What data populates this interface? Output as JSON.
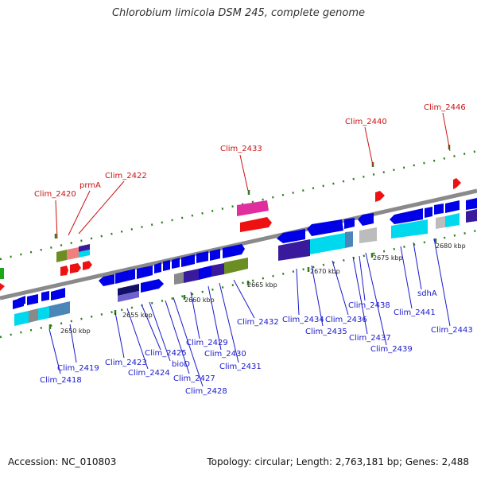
{
  "title": "Chlorobium limicola DSM 245, complete genome",
  "footer": {
    "accession": "Accession: NC_010803",
    "stats": "Topology: circular; Length: 2,763,181 bp; Genes: 2,488"
  },
  "colors": {
    "backbone": "#8a8a8a",
    "tick": "#2e7d1f",
    "gene_label": "#1a1acc",
    "special_label": "#cc1111",
    "cds": "#0000e6",
    "cds_dark": "#3a1a9c",
    "cds_light": "#00d8ee",
    "cds_steel": "#4a86b8",
    "cds_gray": "#8a8a8a",
    "cds_olive": "#6b8e23",
    "cds_pink": "#e02e9e",
    "cds_red": "#ee1111",
    "cds_salmon": "#f08080",
    "cds_silver": "#bcbcbc"
  },
  "scale_labels": [
    {
      "key": "s2650",
      "text": "2650 kbp",
      "position_kbp": 2650
    },
    {
      "key": "s2655",
      "text": "2655 kbp",
      "position_kbp": 2655
    },
    {
      "key": "s2660",
      "text": "2660 kbp",
      "position_kbp": 2660
    },
    {
      "key": "s2665",
      "text": "2665 kbp",
      "position_kbp": 2665
    },
    {
      "key": "s2670",
      "text": "2670 kbp",
      "position_kbp": 2670
    },
    {
      "key": "s2675",
      "text": "2675 kbp",
      "position_kbp": 2675
    },
    {
      "key": "s2680",
      "text": "2680 kbp",
      "position_kbp": 2680
    }
  ],
  "gene_labels_top": [
    {
      "key": "clim2420",
      "text": "Clim_2420"
    },
    {
      "key": "prmA",
      "text": "prmA"
    },
    {
      "key": "clim2422",
      "text": "Clim_2422"
    },
    {
      "key": "clim2433",
      "text": "Clim_2433"
    },
    {
      "key": "clim2440",
      "text": "Clim_2440"
    },
    {
      "key": "clim2446",
      "text": "Clim_2446"
    }
  ],
  "gene_labels_bottom": [
    {
      "key": "clim2418",
      "text": "Clim_2418"
    },
    {
      "key": "clim2419",
      "text": "Clim_2419"
    },
    {
      "key": "clim2423",
      "text": "Clim_2423"
    },
    {
      "key": "clim2424",
      "text": "Clim_2424"
    },
    {
      "key": "clim2425",
      "text": "Clim_2425"
    },
    {
      "key": "bioD",
      "text": "bioD"
    },
    {
      "key": "clim2427",
      "text": "Clim_2427"
    },
    {
      "key": "clim2428",
      "text": "Clim_2428"
    },
    {
      "key": "clim2429",
      "text": "Clim_2429"
    },
    {
      "key": "clim2430",
      "text": "Clim_2430"
    },
    {
      "key": "clim2431",
      "text": "Clim_2431"
    },
    {
      "key": "clim2432",
      "text": "Clim_2432"
    },
    {
      "key": "clim2434",
      "text": "Clim_2434"
    },
    {
      "key": "clim2435",
      "text": "Clim_2435"
    },
    {
      "key": "clim2436",
      "text": "Clim_2436"
    },
    {
      "key": "clim2437",
      "text": "Clim_2437"
    },
    {
      "key": "clim2438",
      "text": "Clim_2438"
    },
    {
      "key": "clim2439",
      "text": "Clim_2439"
    },
    {
      "key": "clim2441",
      "text": "Clim_2441"
    },
    {
      "key": "sdhA",
      "text": "sdhA"
    },
    {
      "key": "clim2443",
      "text": "Clim_2443"
    }
  ]
}
